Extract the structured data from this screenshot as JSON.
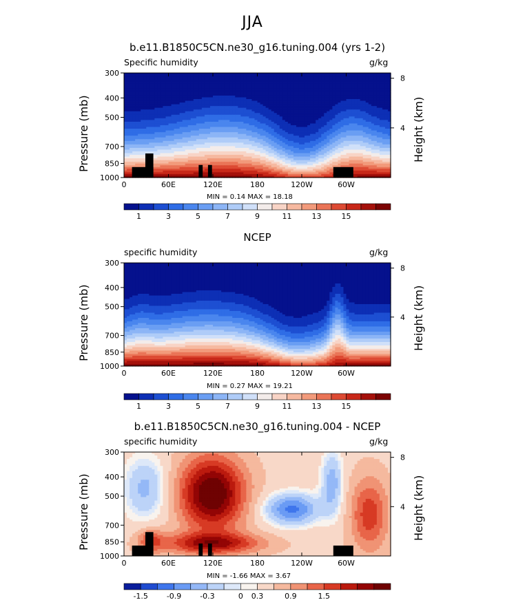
{
  "title": "JJA",
  "colors": {
    "positive_scale": [
      "#05118d",
      "#0d2fb5",
      "#1d4fd2",
      "#2f6de6",
      "#4a86ee",
      "#6a9ef3",
      "#8cb5f6",
      "#afccf8",
      "#d0e0f9",
      "#f3ecea",
      "#f8d4c6",
      "#f6b9a0",
      "#f29a7b",
      "#ea7457",
      "#dd4a33",
      "#c82819",
      "#a5110b",
      "#7c0404"
    ],
    "diff_scale": [
      "#0a1d9c",
      "#1f4bd0",
      "#3f76ec",
      "#6a9bf4",
      "#94b8f7",
      "#bcd3f8",
      "#dde8f9",
      "#f8f3ee",
      "#f8d8c8",
      "#f5b99e",
      "#f09374",
      "#e86549",
      "#d73a24",
      "#bb1a0e",
      "#930505",
      "#6f0202"
    ],
    "terrain": "#000000"
  },
  "chart_data": [
    {
      "type": "heatmap",
      "title": "b.e11.B1850C5CN.ne30_g16.tuning.004 (yrs 1-2)",
      "left_label": "Specific humidity",
      "right_label": "g/kg",
      "ylabel": "Pressure (mb)",
      "y2label": "Height (km)",
      "xticks": [
        "0",
        "60E",
        "120E",
        "180",
        "120W",
        "60W"
      ],
      "yticks": [
        "300",
        "400",
        "500",
        "700",
        "850",
        "1000"
      ],
      "y2ticks": [
        "8",
        "4"
      ],
      "min_text": "MIN =    0.14   MAX =   18.18",
      "colorbar_labels": [
        "1",
        "3",
        "5",
        "7",
        "9",
        "11",
        "13",
        "15"
      ],
      "min": 0.14,
      "max": 18.18
    },
    {
      "type": "heatmap",
      "title": "NCEP",
      "left_label": "specific humidity",
      "right_label": "g/kg",
      "ylabel": "Pressure (mb)",
      "y2label": "Height (km)",
      "xticks": [
        "0",
        "60E",
        "120E",
        "180",
        "120W",
        "60W"
      ],
      "yticks": [
        "300",
        "400",
        "500",
        "700",
        "850",
        "1000"
      ],
      "y2ticks": [
        "8",
        "4"
      ],
      "min_text": "MIN =    0.27   MAX =   19.21",
      "colorbar_labels": [
        "1",
        "3",
        "5",
        "7",
        "9",
        "11",
        "13",
        "15"
      ],
      "min": 0.27,
      "max": 19.21
    },
    {
      "type": "heatmap",
      "title": "b.e11.B1850C5CN.ne30_g16.tuning.004 - NCEP",
      "left_label": "specific humidity",
      "right_label": "g/kg",
      "ylabel": "Pressure (mb)",
      "y2label": "Height (km)",
      "xticks": [
        "0",
        "60E",
        "120E",
        "180",
        "120W",
        "60W"
      ],
      "yticks": [
        "300",
        "400",
        "500",
        "700",
        "850",
        "1000"
      ],
      "y2ticks": [
        "8",
        "4"
      ],
      "min_text": "MIN =   -1.66   MAX =    3.67",
      "colorbar_labels": [
        "-1.5",
        "-0.9",
        "-0.3",
        "0",
        "0.3",
        "0.9",
        "1.5"
      ],
      "min": -1.66,
      "max": 3.67
    }
  ]
}
